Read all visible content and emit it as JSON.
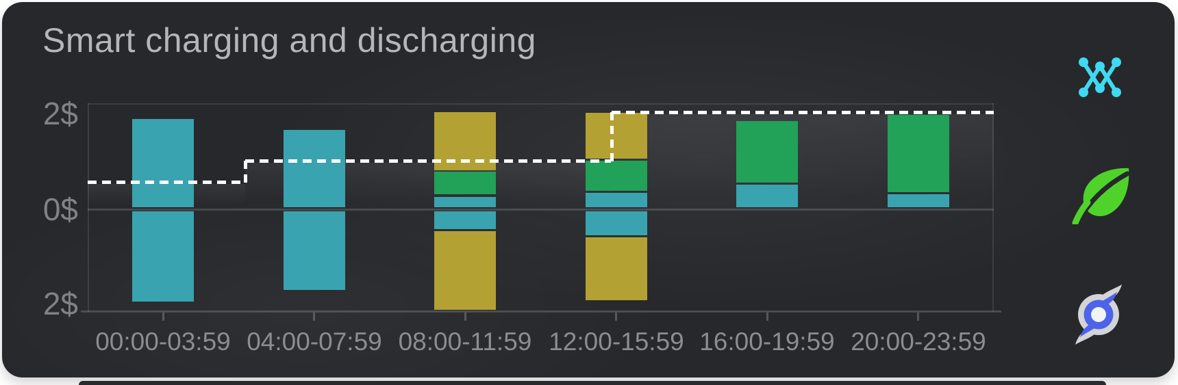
{
  "card": {
    "title": "Smart charging and discharging"
  },
  "chart_data": {
    "type": "bar",
    "variant": "diverging-stacked-bars-with-step-line",
    "title": "Smart charging and discharging",
    "categories": [
      "00:00-03:59",
      "04:00-07:59",
      "08:00-11:59",
      "12:00-15:59",
      "16:00-19:59",
      "20:00-23:59"
    ],
    "y_axis": {
      "unit": "$",
      "labels": [
        "2$",
        "0$",
        "2$"
      ],
      "range": [
        -2.2,
        2.2
      ],
      "gridlines": false
    },
    "series_colors": {
      "teal": "#39a4af",
      "green": "#22a158",
      "yellow": "#b3a133"
    },
    "bars": [
      {
        "category": "00:00-03:59",
        "above": [
          {
            "series": "teal",
            "value": 1.85
          }
        ],
        "below": [
          {
            "series": "teal",
            "value": 1.9
          }
        ]
      },
      {
        "category": "04:00-07:59",
        "above": [
          {
            "series": "teal",
            "value": 1.63
          }
        ],
        "below": [
          {
            "series": "teal",
            "value": 1.66
          }
        ]
      },
      {
        "category": "08:00-11:59",
        "above": [
          {
            "series": "teal",
            "value": 0.22
          },
          {
            "series": "green",
            "value": 0.48
          },
          {
            "series": "yellow",
            "value": 1.22
          }
        ],
        "below": [
          {
            "series": "teal",
            "value": 0.37
          },
          {
            "series": "yellow",
            "value": 1.66
          }
        ]
      },
      {
        "category": "12:00-15:59",
        "above": [
          {
            "series": "teal",
            "value": 0.3
          },
          {
            "series": "green",
            "value": 0.63
          },
          {
            "series": "yellow",
            "value": 0.97
          }
        ],
        "below": [
          {
            "series": "teal",
            "value": 0.51
          },
          {
            "series": "yellow",
            "value": 1.33
          }
        ]
      },
      {
        "category": "16:00-19:59",
        "above": [
          {
            "series": "teal",
            "value": 0.48
          },
          {
            "series": "green",
            "value": 1.29
          }
        ],
        "below": []
      },
      {
        "category": "20:00-23:59",
        "above": [
          {
            "series": "teal",
            "value": 0.27
          },
          {
            "series": "green",
            "value": 1.63
          }
        ],
        "below": []
      }
    ],
    "price_line": {
      "style": "dashed",
      "color": "#ffffff",
      "steps": [
        {
          "from_frac": 0.0,
          "to_frac": 0.174,
          "value": 0.58
        },
        {
          "from_frac": 0.174,
          "to_frac": 0.578,
          "value": 1.02
        },
        {
          "from_frac": 0.578,
          "to_frac": 1.0,
          "value": 2.04
        }
      ]
    },
    "legend": "none"
  },
  "icons": [
    {
      "name": "grid-network",
      "color": "#3fd9f2"
    },
    {
      "name": "eco-leaf",
      "color": "#4fd32b"
    },
    {
      "name": "hurricane",
      "color": "#4e63e9",
      "swirl_color": "#d3d4d7",
      "center_color": "#f2f3f5"
    }
  ],
  "colors": {
    "page_bg": "#ffffff",
    "card_bg": "#27282c",
    "title_text": "#b3b6ba",
    "axis_text": "#8a8d91",
    "grid_line": "rgba(255,255,255,0.15)"
  }
}
